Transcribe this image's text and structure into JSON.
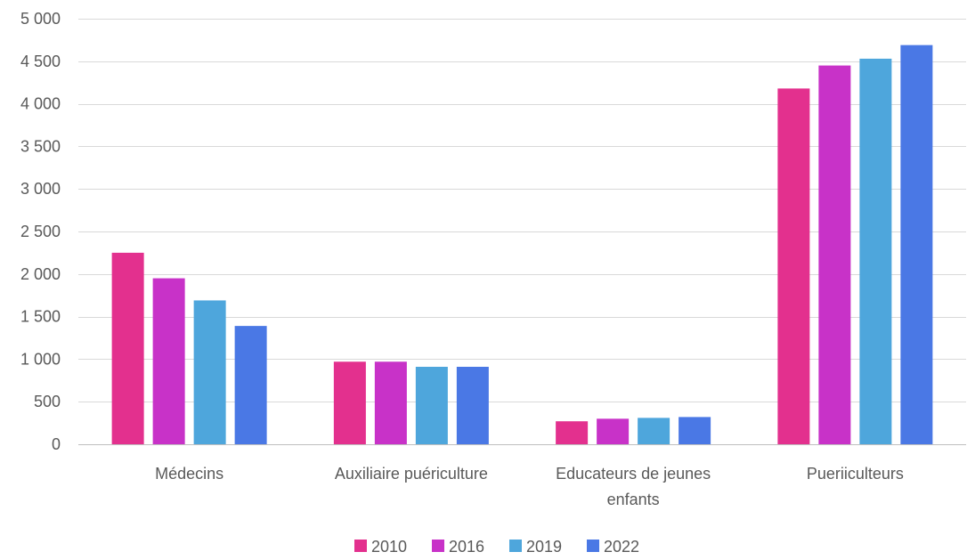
{
  "chart_data": {
    "type": "bar",
    "title": "",
    "xlabel": "",
    "ylabel": "",
    "ylim": [
      0,
      5000
    ],
    "yticks": [
      0,
      500,
      1000,
      1500,
      2000,
      2500,
      3000,
      3500,
      4000,
      4500,
      5000
    ],
    "ytick_labels": [
      "0",
      "500",
      "1 000",
      "1 500",
      "2 000",
      "2 500",
      "3 000",
      "3 500",
      "4 000",
      "4 500",
      "5 000"
    ],
    "grid": true,
    "legend_position": "bottom",
    "categories": [
      "Médecins",
      "Auxiliaire puériculture",
      "Educateurs de jeunes enfants",
      "Pueriiculteurs"
    ],
    "category_label_lines": [
      [
        "Médecins"
      ],
      [
        "Auxiliaire puériculture"
      ],
      [
        "Educateurs de jeunes",
        "enfants"
      ],
      [
        "Pueriiculteurs"
      ]
    ],
    "series": [
      {
        "name": "2010",
        "color": "#E3308E",
        "values": [
          2250,
          970,
          270,
          4180
        ]
      },
      {
        "name": "2016",
        "color": "#C832C8",
        "values": [
          1950,
          970,
          300,
          4450
        ]
      },
      {
        "name": "2019",
        "color": "#4EA6DC",
        "values": [
          1690,
          910,
          310,
          4530
        ]
      },
      {
        "name": "2022",
        "color": "#4A78E5",
        "values": [
          1390,
          910,
          320,
          4690
        ]
      }
    ]
  }
}
